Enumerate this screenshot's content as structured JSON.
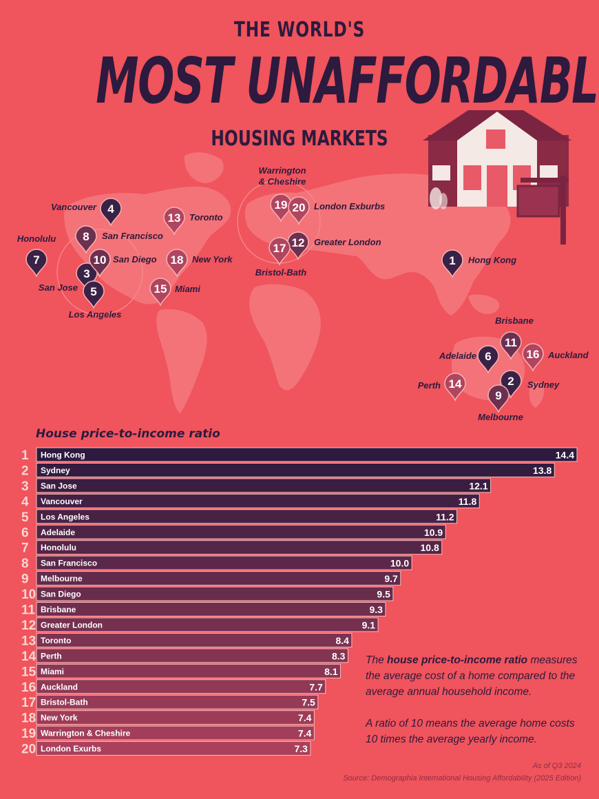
{
  "title": {
    "line1": "THE WORLD'S",
    "line2": "MOST UNAFFORDABLE",
    "line3": "HOUSING MARKETS"
  },
  "colors": {
    "background": "#f0545c",
    "dark": "#2d1a3e",
    "pin_dark": "#3a2247",
    "pin_mid": "#6e3050",
    "pin_light": "#b04560",
    "map_land": "#f37378"
  },
  "markers": [
    {
      "rank": "1",
      "city": "Hong Kong",
      "shade": "dark"
    },
    {
      "rank": "2",
      "city": "Sydney",
      "shade": "dark"
    },
    {
      "rank": "3",
      "city": "San Jose",
      "shade": "dark"
    },
    {
      "rank": "4",
      "city": "Vancouver",
      "shade": "dark"
    },
    {
      "rank": "5",
      "city": "Los Angeles",
      "shade": "dark"
    },
    {
      "rank": "6",
      "city": "Adelaide",
      "shade": "dark"
    },
    {
      "rank": "7",
      "city": "Honolulu",
      "shade": "dark"
    },
    {
      "rank": "8",
      "city": "San Francisco",
      "shade": "mid"
    },
    {
      "rank": "9",
      "city": "Melbourne",
      "shade": "mid"
    },
    {
      "rank": "10",
      "city": "San Diego",
      "shade": "mid"
    },
    {
      "rank": "11",
      "city": "Brisbane",
      "shade": "mid"
    },
    {
      "rank": "12",
      "city": "Greater London",
      "shade": "mid"
    },
    {
      "rank": "13",
      "city": "Toronto",
      "shade": "light"
    },
    {
      "rank": "14",
      "city": "Perth",
      "shade": "light"
    },
    {
      "rank": "15",
      "city": "Miami",
      "shade": "light"
    },
    {
      "rank": "16",
      "city": "Auckland",
      "shade": "light"
    },
    {
      "rank": "17",
      "city": "Bristol-Bath",
      "shade": "light"
    },
    {
      "rank": "18",
      "city": "New York",
      "shade": "light"
    },
    {
      "rank": "19",
      "city": "Warrington & Cheshire",
      "shade": "light"
    },
    {
      "rank": "20",
      "city": "London Exburbs",
      "shade": "light"
    }
  ],
  "chart_data": {
    "type": "bar",
    "orientation": "horizontal",
    "title": "House price-to-income ratio",
    "categories": [
      "Hong Kong",
      "Sydney",
      "San Jose",
      "Vancouver",
      "Los Angeles",
      "Adelaide",
      "Honolulu",
      "San Francisco",
      "Melbourne",
      "San Diego",
      "Brisbane",
      "Greater London",
      "Toronto",
      "Perth",
      "Miami",
      "Auckland",
      "Bristol-Bath",
      "New York",
      "Warrington & Cheshire",
      "London Exurbs"
    ],
    "ranks": [
      "1",
      "2",
      "3",
      "4",
      "5",
      "6",
      "7",
      "8",
      "9",
      "10",
      "11",
      "12",
      "13",
      "14",
      "15",
      "16",
      "17",
      "18",
      "19",
      "20"
    ],
    "values": [
      14.4,
      13.8,
      12.1,
      11.8,
      11.2,
      10.9,
      10.8,
      10.0,
      9.7,
      9.5,
      9.3,
      9.1,
      8.4,
      8.3,
      8.1,
      7.7,
      7.5,
      7.4,
      7.4,
      7.3
    ],
    "value_labels": [
      "14.4",
      "13.8",
      "12.1",
      "11.8",
      "11.2",
      "10.9",
      "10.8",
      "10.0",
      "9.7",
      "9.5",
      "9.3",
      "9.1",
      "8.4",
      "8.3",
      "8.1",
      "7.7",
      "7.5",
      "7.4",
      "7.4",
      "7.3"
    ],
    "xlim": [
      0,
      14.4
    ]
  },
  "note": {
    "p1_pre": "The ",
    "p1_bold": "house price-to-income ratio",
    "p1_post": " measures the average cost of a home compared to the average annual household income.",
    "p2": "A ratio of 10 means the average home costs 10 times the average yearly income."
  },
  "footer": {
    "asof": "As of Q3 2024",
    "source": "Source: Demographia International Housing Affordability (2025 Edition)"
  }
}
